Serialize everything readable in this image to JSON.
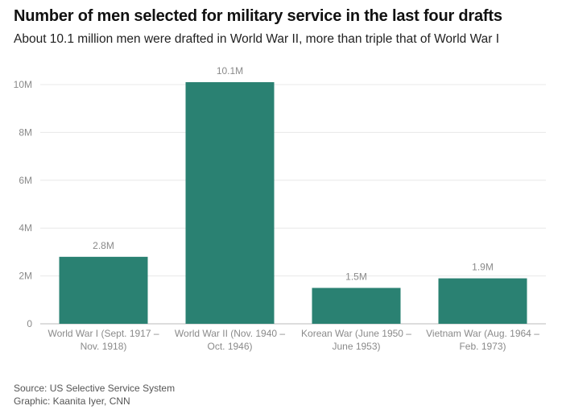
{
  "header": {
    "title": "Number of men selected for military service in the last four drafts",
    "subtitle": "About 10.1 million men were drafted in World War II, more than triple that of World War I"
  },
  "footer": {
    "source": "Source: US Selective Service System",
    "credit": "Graphic: Kaanita Iyer, CNN"
  },
  "colors": {
    "bar": "#2a8172",
    "grid": "#e8e8e8",
    "axis": "#bbbbbb",
    "label": "#8a8a8a"
  },
  "chart_data": {
    "type": "bar",
    "categories": [
      [
        "World War I (Sept. 1917 –",
        "Nov. 1918)"
      ],
      [
        "World War II (Nov. 1940 –",
        "Oct. 1946)"
      ],
      [
        "Korean War (June 1950 –",
        "June 1953)"
      ],
      [
        "Vietnam War (Aug. 1964 –",
        "Feb. 1973)"
      ]
    ],
    "values": [
      2.8,
      10.1,
      1.5,
      1.9
    ],
    "value_labels": [
      "2.8M",
      "10.1M",
      "1.5M",
      "1.9M"
    ],
    "yticks": [
      0,
      2,
      4,
      6,
      8,
      10
    ],
    "ytick_labels": [
      "0",
      "2M",
      "4M",
      "6M",
      "8M",
      "10M"
    ],
    "ylim": [
      0,
      10
    ],
    "unit": "millions",
    "grid": true
  }
}
